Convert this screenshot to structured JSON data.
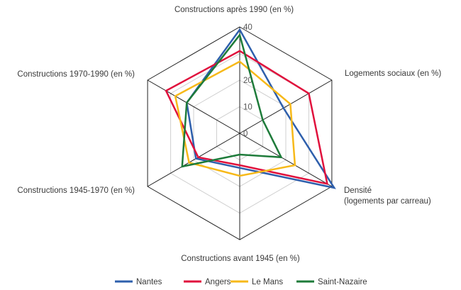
{
  "chart_data": {
    "type": "radar",
    "axes": [
      {
        "label_lines": [
          "Constructions après 1990 (en %)"
        ],
        "max": 40
      },
      {
        "label_lines": [
          "Logements sociaux (en %)"
        ],
        "max": 40
      },
      {
        "label_lines": [
          "Densité",
          "(logements par carreau)"
        ],
        "max": 40
      },
      {
        "label_lines": [
          "Constructions avant 1945 (en %)"
        ],
        "max": 40
      },
      {
        "label_lines": [
          "Constructions 1945-1970 (en %)"
        ],
        "max": 40
      },
      {
        "label_lines": [
          "Constructions 1970-1990 (en %)"
        ],
        "max": 40
      }
    ],
    "ticks": [
      0,
      10,
      20,
      30,
      40
    ],
    "tick_labels": [
      "0",
      "10",
      "20",
      "",
      "40"
    ],
    "rmax": 40,
    "series": [
      {
        "name": "Nantes",
        "color": "#2e5fac",
        "values": [
          39,
          19,
          41,
          13,
          19,
          23
        ]
      },
      {
        "name": "Angers",
        "color": "#e0103c",
        "values": [
          31,
          30,
          38,
          12,
          18,
          32
        ]
      },
      {
        "name": "Le Mans",
        "color": "#f7b919",
        "values": [
          27,
          22,
          24,
          16,
          22,
          28
        ]
      },
      {
        "name": "Saint-Nazaire",
        "color": "#1e7b3a",
        "values": [
          37,
          10,
          18,
          8,
          25,
          23
        ]
      }
    ]
  }
}
